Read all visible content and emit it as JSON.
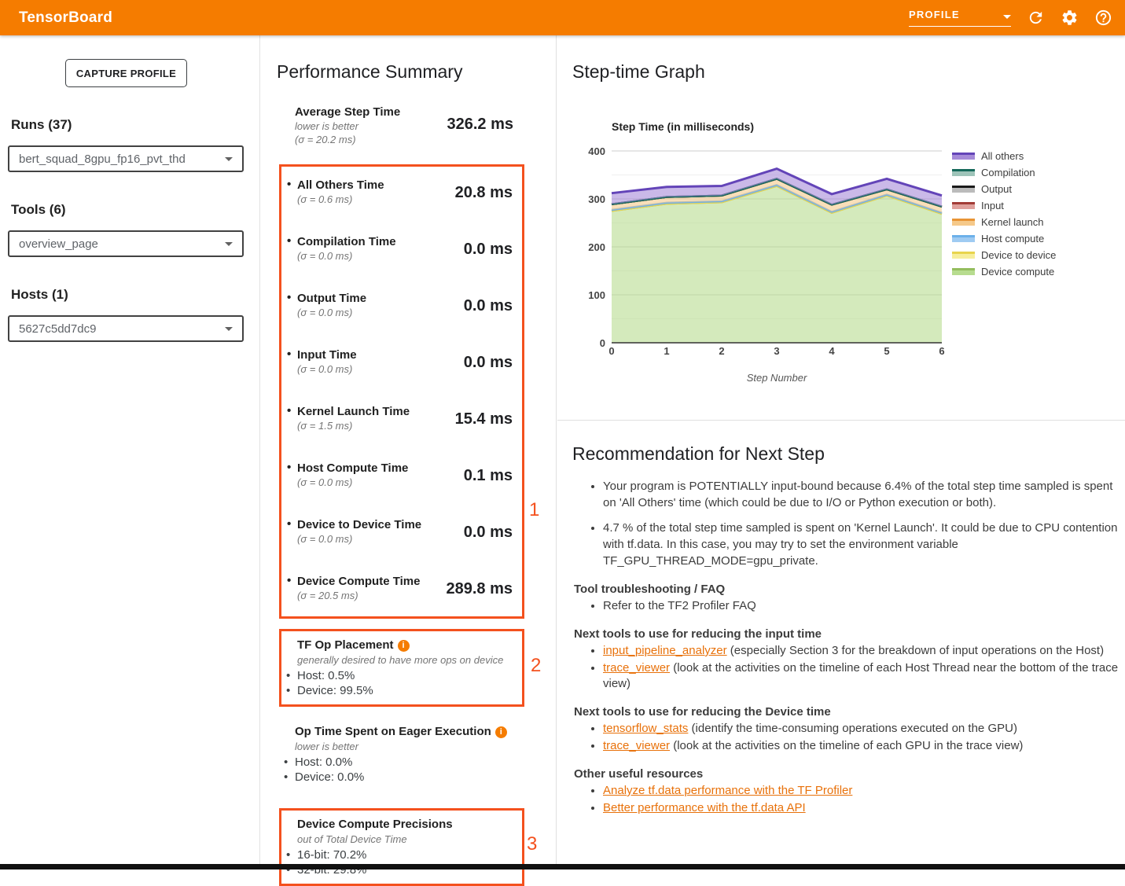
{
  "header": {
    "app_title": "TensorBoard",
    "nav_selected": "PROFILE"
  },
  "sidebar": {
    "capture_button": "CAPTURE PROFILE",
    "runs_label": "Runs (37)",
    "runs_value": "bert_squad_8gpu_fp16_pvt_thd",
    "tools_label": "Tools (6)",
    "tools_value": "overview_page",
    "hosts_label": "Hosts (1)",
    "hosts_value": "5627c5dd7dc9"
  },
  "performance_summary": {
    "title": "Performance Summary",
    "average": {
      "name": "Average Step Time",
      "note": "lower is better",
      "sigma": "(σ = 20.2 ms)",
      "value": "326.2 ms"
    },
    "metrics": [
      {
        "name": "All Others Time",
        "sigma": "(σ = 0.6 ms)",
        "value": "20.8 ms"
      },
      {
        "name": "Compilation Time",
        "sigma": "(σ = 0.0 ms)",
        "value": "0.0 ms"
      },
      {
        "name": "Output Time",
        "sigma": "(σ = 0.0 ms)",
        "value": "0.0 ms"
      },
      {
        "name": "Input Time",
        "sigma": "(σ = 0.0 ms)",
        "value": "0.0 ms"
      },
      {
        "name": "Kernel Launch Time",
        "sigma": "(σ = 1.5 ms)",
        "value": "15.4 ms"
      },
      {
        "name": "Host Compute Time",
        "sigma": "(σ = 0.0 ms)",
        "value": "0.1 ms"
      },
      {
        "name": "Device to Device Time",
        "sigma": "(σ = 0.0 ms)",
        "value": "0.0 ms"
      },
      {
        "name": "Device Compute Time",
        "sigma": "(σ = 20.5 ms)",
        "value": "289.8 ms"
      }
    ],
    "tf_op_placement": {
      "title": "TF Op Placement",
      "subtitle": "generally desired to have more ops on device",
      "bullets": [
        "Host: 0.5%",
        "Device: 99.5%"
      ]
    },
    "eager": {
      "title": "Op Time Spent on Eager Execution",
      "subtitle": "lower is better",
      "bullets": [
        "Host: 0.0%",
        "Device: 0.0%"
      ]
    },
    "precisions": {
      "title": "Device Compute Precisions",
      "subtitle": "out of Total Device Time",
      "bullets": [
        "16-bit: 70.2%",
        "32-bit: 29.8%"
      ]
    },
    "annotations": [
      "1",
      "2",
      "3"
    ]
  },
  "step_time_graph": {
    "title": "Step-time Graph",
    "chart_data": {
      "type": "area",
      "stacked": true,
      "title": "Step Time (in milliseconds)",
      "xlabel": "Step Number",
      "ylabel": "",
      "x": [
        0,
        1,
        2,
        3,
        4,
        5,
        6
      ],
      "ylim": [
        0,
        400
      ],
      "y_major_ticks": [
        0,
        100,
        200,
        300,
        400
      ],
      "y_minor_ticks": [
        50,
        150,
        250,
        350
      ],
      "grid": true,
      "legend_position": "right",
      "series_bottom_up": [
        {
          "name": "Device compute",
          "line": "#94BD5E",
          "fill": "#B7DC8F",
          "values": [
            275,
            290,
            293,
            327,
            271,
            307,
            269
          ]
        },
        {
          "name": "Device to device",
          "line": "#E8D44D",
          "fill": "#F7EE9B",
          "values": [
            0,
            0,
            0,
            0,
            0,
            0,
            0
          ]
        },
        {
          "name": "Host compute",
          "line": "#6CB0EA",
          "fill": "#9FCBF2",
          "values": [
            2,
            2,
            2,
            2,
            2,
            2,
            2
          ]
        },
        {
          "name": "Kernel launch",
          "line": "#E89435",
          "fill": "#F5C98A",
          "values": [
            12,
            12,
            12,
            13,
            15,
            11,
            13
          ]
        },
        {
          "name": "Input",
          "line": "#A23B36",
          "fill": "#DFA09C",
          "values": [
            0,
            0,
            0,
            0,
            0,
            0,
            0
          ]
        },
        {
          "name": "Output",
          "line": "#1A1A1A",
          "fill": "#BBBBBB",
          "values": [
            0,
            0,
            0,
            0,
            0,
            0,
            0
          ]
        },
        {
          "name": "Compilation",
          "line": "#15695A",
          "fill": "#9EC4B9",
          "values": [
            0,
            0,
            0,
            0,
            0,
            0,
            0
          ]
        },
        {
          "name": "All others",
          "line": "#6344B8",
          "fill": "#A68BD8",
          "values": [
            23,
            21,
            20,
            21,
            22,
            22,
            23
          ]
        }
      ]
    }
  },
  "recommendation": {
    "title": "Recommendation for Next Step",
    "bullets": [
      "Your program is POTENTIALLY input-bound because 6.4% of the total step time sampled is spent on 'All Others' time (which could be due to I/O or Python execution or both).",
      "4.7 % of the total step time sampled is spent on 'Kernel Launch'. It could be due to CPU contention with tf.data. In this case, you may try to set the environment variable TF_GPU_THREAD_MODE=gpu_private."
    ],
    "sections": [
      {
        "title": "Tool troubleshooting / FAQ",
        "items": [
          {
            "text": "Refer to the TF2 Profiler FAQ"
          }
        ]
      },
      {
        "title": "Next tools to use for reducing the input time",
        "items": [
          {
            "link": "input_pipeline_analyzer",
            "text": " (especially Section 3 for the breakdown of input operations on the Host)"
          },
          {
            "link": "trace_viewer",
            "text": " (look at the activities on the timeline of each Host Thread near the bottom of the trace view)"
          }
        ]
      },
      {
        "title": "Next tools to use for reducing the Device time",
        "items": [
          {
            "link": "tensorflow_stats",
            "text": " (identify the time-consuming operations executed on the GPU)"
          },
          {
            "link": "trace_viewer",
            "text": " (look at the activities on the timeline of each GPU in the trace view)"
          }
        ]
      },
      {
        "title": "Other useful resources",
        "items": [
          {
            "link": "Analyze tf.data performance with the TF Profiler"
          },
          {
            "link": "Better performance with the tf.data API"
          }
        ]
      }
    ]
  },
  "colors": {
    "header_bg": "#F57C00",
    "annotation_red": "#F4511E",
    "link_orange": "#E8710A"
  }
}
